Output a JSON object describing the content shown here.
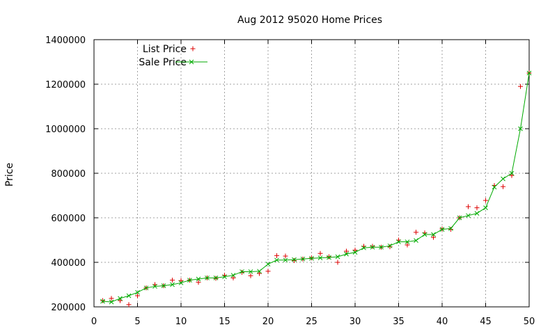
{
  "chart_data": {
    "type": "scatter",
    "title": "Aug 2012 95020 Home Prices",
    "xlabel": "",
    "ylabel": "Price",
    "xlim": [
      0,
      50
    ],
    "ylim": [
      200000,
      1400000
    ],
    "xticks": [
      0,
      5,
      10,
      15,
      20,
      25,
      30,
      35,
      40,
      45,
      50
    ],
    "yticks": [
      200000,
      400000,
      600000,
      800000,
      1000000,
      1200000,
      1400000
    ],
    "grid": true,
    "legend_position": "top-left",
    "series": [
      {
        "name": "List Price",
        "style": "points",
        "marker": "+",
        "color": "#dd0000",
        "x": [
          1,
          2,
          3,
          4,
          5,
          6,
          7,
          8,
          9,
          10,
          11,
          12,
          13,
          14,
          15,
          16,
          17,
          18,
          19,
          20,
          21,
          22,
          23,
          24,
          25,
          26,
          27,
          28,
          29,
          30,
          31,
          32,
          33,
          34,
          35,
          36,
          37,
          38,
          39,
          40,
          41,
          42,
          43,
          44,
          45,
          46,
          47,
          48,
          49,
          50
        ],
        "y": [
          228000,
          238000,
          228000,
          210000,
          250000,
          285000,
          300000,
          295000,
          320000,
          318000,
          320000,
          310000,
          330000,
          328000,
          342000,
          330000,
          355000,
          340000,
          350000,
          360000,
          430000,
          428000,
          408000,
          415000,
          420000,
          440000,
          425000,
          400000,
          450000,
          455000,
          472000,
          472000,
          468000,
          470000,
          500000,
          478000,
          535000,
          532000,
          512000,
          550000,
          548000,
          600000,
          650000,
          645000,
          678000,
          745000,
          740000,
          790000,
          1190000,
          1250000
        ]
      },
      {
        "name": "Sale Price",
        "style": "linespoints",
        "marker": "x",
        "color": "#00aa00",
        "x": [
          1,
          2,
          3,
          4,
          5,
          6,
          7,
          8,
          9,
          10,
          11,
          12,
          13,
          14,
          15,
          16,
          17,
          18,
          19,
          20,
          21,
          22,
          23,
          24,
          25,
          26,
          27,
          28,
          29,
          30,
          31,
          32,
          33,
          34,
          35,
          36,
          37,
          38,
          39,
          40,
          41,
          42,
          43,
          44,
          45,
          46,
          47,
          48,
          49,
          50
        ],
        "y": [
          225000,
          222000,
          238000,
          250000,
          265000,
          285000,
          292000,
          295000,
          300000,
          308000,
          320000,
          325000,
          330000,
          330000,
          335000,
          342000,
          358000,
          358000,
          360000,
          392000,
          410000,
          410000,
          412000,
          415000,
          418000,
          420000,
          422000,
          425000,
          437000,
          445000,
          465000,
          468000,
          468000,
          474000,
          492000,
          492000,
          498000,
          525000,
          525000,
          548000,
          552000,
          600000,
          610000,
          620000,
          645000,
          738000,
          775000,
          800000,
          1000000,
          1250000
        ]
      }
    ]
  }
}
